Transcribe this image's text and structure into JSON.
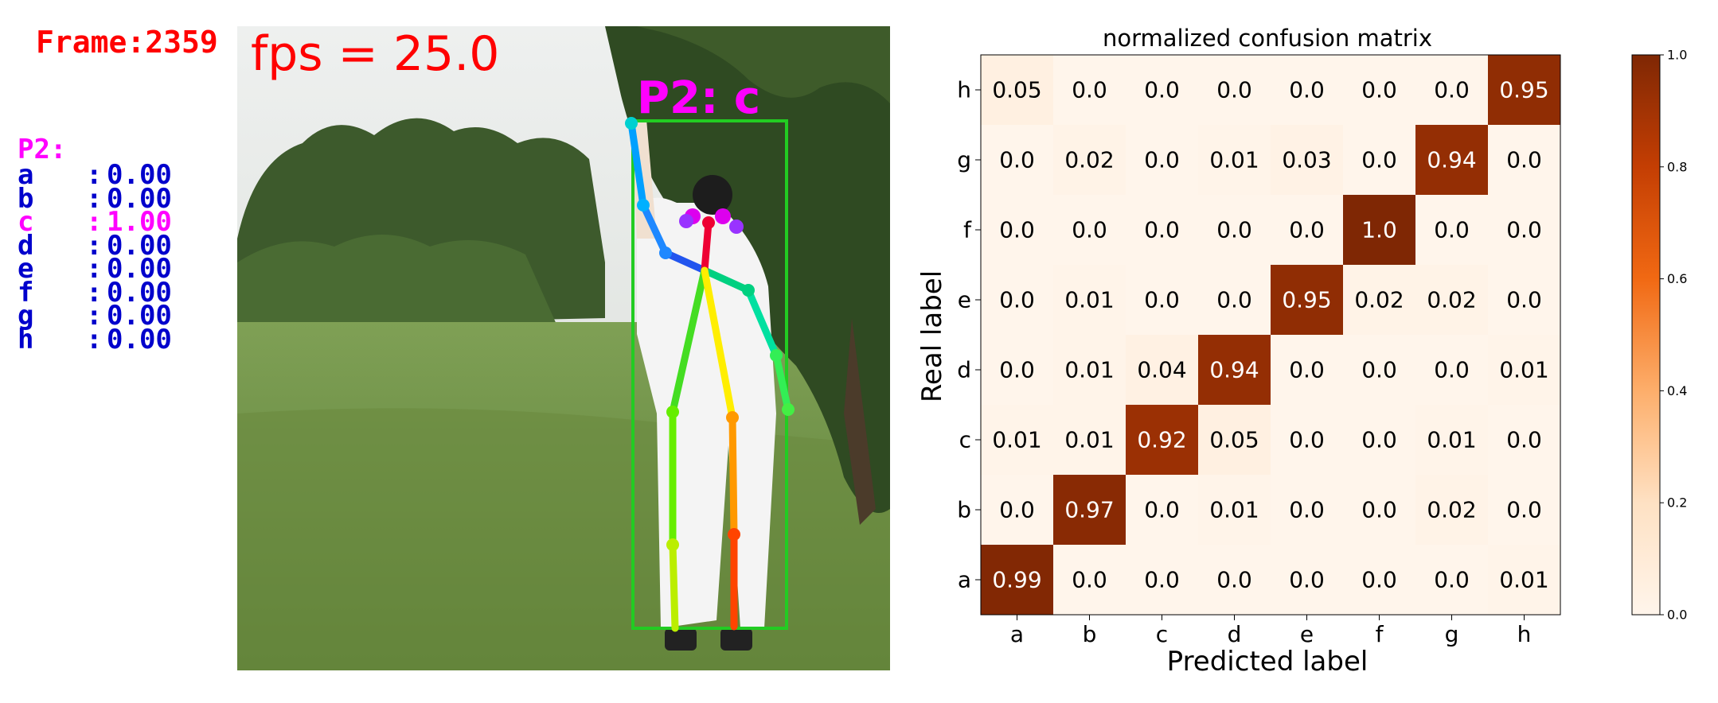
{
  "overlay": {
    "frame_label": "Frame:2359",
    "fps_label": "fps = 25.0",
    "person_label": "P2: c"
  },
  "scores": {
    "title": "P2:",
    "items": [
      {
        "label": "a",
        "value": "0.00",
        "active": false
      },
      {
        "label": "b",
        "value": "0.00",
        "active": false
      },
      {
        "label": "c",
        "value": "1.00",
        "active": true
      },
      {
        "label": "d",
        "value": "0.00",
        "active": false
      },
      {
        "label": "e",
        "value": "0.00",
        "active": false
      },
      {
        "label": "f",
        "value": "0.00",
        "active": false
      },
      {
        "label": "g",
        "value": "0.00",
        "active": false
      },
      {
        "label": "h",
        "value": "0.00",
        "active": false
      }
    ]
  },
  "colors": {
    "overlay_red": "#ff0000",
    "overlay_magenta": "#ff00ff",
    "score_blue": "#0000cc",
    "bbox_green": "#22cc22",
    "cmap_low": "#fff5eb",
    "cmap_high": "#7f2704"
  },
  "chart_data": {
    "type": "heatmap",
    "title": "normalized confusion matrix",
    "xlabel": "Predicted label",
    "ylabel": "Real label",
    "x_categories": [
      "a",
      "b",
      "c",
      "d",
      "e",
      "f",
      "g",
      "h"
    ],
    "y_categories": [
      "h",
      "g",
      "f",
      "e",
      "d",
      "c",
      "b",
      "a"
    ],
    "values": [
      [
        0.05,
        0.0,
        0.0,
        0.0,
        0.0,
        0.0,
        0.0,
        0.95
      ],
      [
        0.0,
        0.02,
        0.0,
        0.01,
        0.03,
        0.0,
        0.94,
        0.0
      ],
      [
        0.0,
        0.0,
        0.0,
        0.0,
        0.0,
        1.0,
        0.0,
        0.0
      ],
      [
        0.0,
        0.01,
        0.0,
        0.0,
        0.95,
        0.02,
        0.02,
        0.0
      ],
      [
        0.0,
        0.01,
        0.04,
        0.94,
        0.0,
        0.0,
        0.0,
        0.01
      ],
      [
        0.01,
        0.01,
        0.92,
        0.05,
        0.0,
        0.0,
        0.01,
        0.0
      ],
      [
        0.0,
        0.97,
        0.0,
        0.01,
        0.0,
        0.0,
        0.02,
        0.0
      ],
      [
        0.99,
        0.0,
        0.0,
        0.0,
        0.0,
        0.0,
        0.0,
        0.01
      ]
    ],
    "value_labels": [
      [
        "0.05",
        "0.0",
        "0.0",
        "0.0",
        "0.0",
        "0.0",
        "0.0",
        "0.95"
      ],
      [
        "0.0",
        "0.02",
        "0.0",
        "0.01",
        "0.03",
        "0.0",
        "0.94",
        "0.0"
      ],
      [
        "0.0",
        "0.0",
        "0.0",
        "0.0",
        "0.0",
        "1.0",
        "0.0",
        "0.0"
      ],
      [
        "0.0",
        "0.01",
        "0.0",
        "0.0",
        "0.95",
        "0.02",
        "0.02",
        "0.0"
      ],
      [
        "0.0",
        "0.01",
        "0.04",
        "0.94",
        "0.0",
        "0.0",
        "0.0",
        "0.01"
      ],
      [
        "0.01",
        "0.01",
        "0.92",
        "0.05",
        "0.0",
        "0.0",
        "0.01",
        "0.0"
      ],
      [
        "0.0",
        "0.97",
        "0.0",
        "0.01",
        "0.0",
        "0.0",
        "0.02",
        "0.0"
      ],
      [
        "0.99",
        "0.0",
        "0.0",
        "0.0",
        "0.0",
        "0.0",
        "0.0",
        "0.01"
      ]
    ],
    "colorbar": {
      "range": [
        0.0,
        1.0
      ],
      "ticks": [
        "0.0",
        "0.2",
        "0.4",
        "0.6",
        "0.8",
        "1.0"
      ]
    },
    "colormap": "Oranges"
  }
}
